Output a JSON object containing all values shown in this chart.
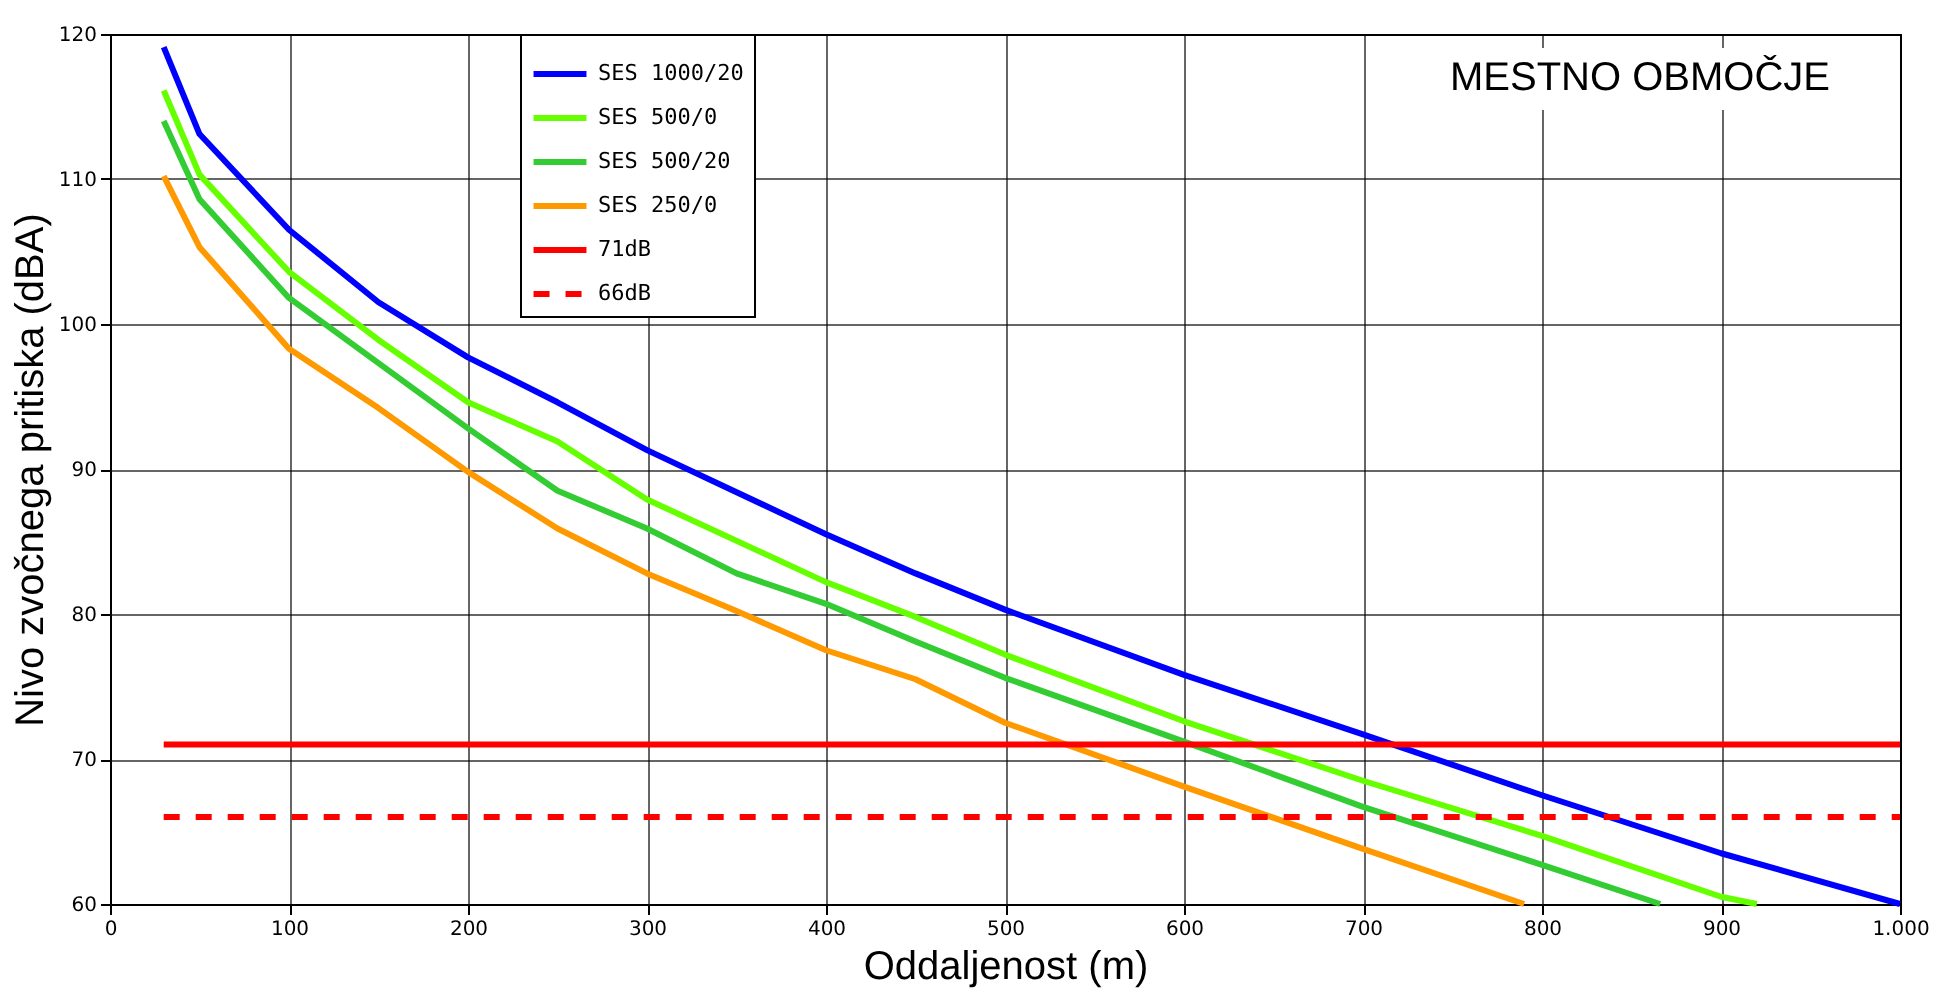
{
  "chart_data": {
    "type": "line",
    "xlabel": "Oddaljenost (m)",
    "ylabel": "Nivo zvočnega pritiska (dBA)",
    "annotations": [
      "MESTNO OBMOČJE"
    ],
    "xlim": [
      0,
      1000
    ],
    "xticks": [
      0,
      100,
      200,
      300,
      400,
      500,
      600,
      700,
      800,
      900,
      {
        "value": 1000,
        "label": "1.000"
      }
    ],
    "ylim": [
      60,
      120
    ],
    "yticks": [
      60,
      70,
      80,
      90,
      100,
      110,
      120
    ],
    "grid": true,
    "legend": "top",
    "marker": "none",
    "series": [
      {
        "name": "SES 1000/20",
        "color": "#0000ff",
        "line_style": "solid",
        "x": [
          30,
          50,
          100,
          150,
          200,
          250,
          300,
          400,
          450,
          500,
          600,
          700,
          800,
          900,
          1000
        ],
        "values": [
          119.1,
          113.1,
          106.5,
          101.5,
          97.7,
          94.6,
          91.3,
          85.5,
          82.8,
          80.3,
          75.8,
          71.7,
          67.5,
          63.5,
          60.0
        ]
      },
      {
        "name": "SES 500/0",
        "color": "#66ff00",
        "line_style": "solid",
        "x": [
          30,
          50,
          100,
          150,
          200,
          250,
          300,
          400,
          450,
          500,
          600,
          700,
          800,
          900,
          920
        ],
        "values": [
          116.1,
          110.3,
          103.6,
          98.9,
          94.6,
          91.9,
          87.9,
          82.2,
          79.8,
          77.2,
          72.6,
          68.5,
          64.7,
          60.5,
          60.0
        ]
      },
      {
        "name": "SES 500/20",
        "color": "#33cc33",
        "line_style": "solid",
        "x": [
          30,
          50,
          100,
          200,
          250,
          300,
          350,
          400,
          450,
          500,
          600,
          700,
          800,
          866
        ],
        "values": [
          114.0,
          108.6,
          101.8,
          92.8,
          88.5,
          85.9,
          82.8,
          80.7,
          78.1,
          75.6,
          71.2,
          66.7,
          62.7,
          60.0
        ]
      },
      {
        "name": "SES 250/0",
        "color": "#ff9900",
        "line_style": "solid",
        "x": [
          30,
          50,
          100,
          150,
          200,
          250,
          300,
          350,
          400,
          450,
          500,
          600,
          700,
          790
        ],
        "values": [
          110.2,
          105.3,
          98.3,
          94.2,
          89.8,
          85.9,
          82.8,
          80.2,
          77.5,
          75.5,
          72.5,
          68.1,
          63.8,
          60.0
        ]
      },
      {
        "name": "71dB",
        "color": "#ff0000",
        "line_style": "solid",
        "x": [
          30,
          1000
        ],
        "values": [
          71,
          71
        ]
      },
      {
        "name": "66dB",
        "color": "#ff0000",
        "line_style": "dashed",
        "x": [
          30,
          1000
        ],
        "values": [
          66,
          66
        ]
      }
    ]
  }
}
